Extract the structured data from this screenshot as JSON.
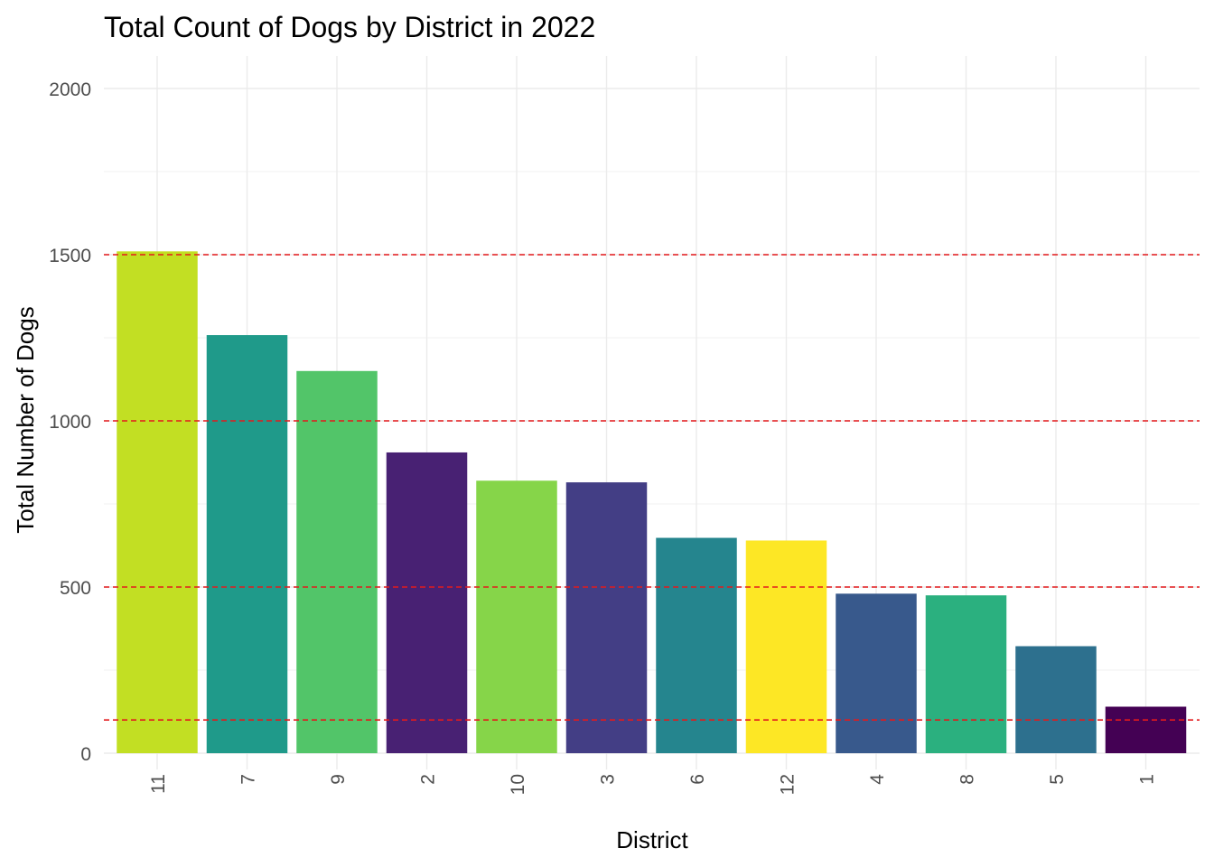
{
  "chart_data": {
    "type": "bar",
    "title": "Total Count of Dogs by District in 2022",
    "xlabel": "District",
    "ylabel": "Total Number of Dogs",
    "categories": [
      "11",
      "7",
      "9",
      "2",
      "10",
      "3",
      "6",
      "12",
      "4",
      "8",
      "5",
      "1"
    ],
    "values": [
      1510,
      1258,
      1150,
      905,
      820,
      815,
      648,
      640,
      480,
      475,
      322,
      140
    ],
    "colors": [
      "#c2df23",
      "#1f9a8a",
      "#52c569",
      "#482173",
      "#86d549",
      "#433e85",
      "#25858e",
      "#fde725",
      "#38598c",
      "#2bb07f",
      "#2d708e",
      "#440154"
    ],
    "ylim": [
      0,
      2000
    ],
    "y_ticks": [
      0,
      500,
      1000,
      1500,
      2000
    ],
    "y_tick_labels": [
      "0",
      "500",
      "1000",
      "1500",
      "2000"
    ],
    "reference_lines": [
      100,
      500,
      1000,
      1500
    ],
    "reference_line_color": "#e31a1c",
    "grid": true,
    "legend": "none"
  }
}
